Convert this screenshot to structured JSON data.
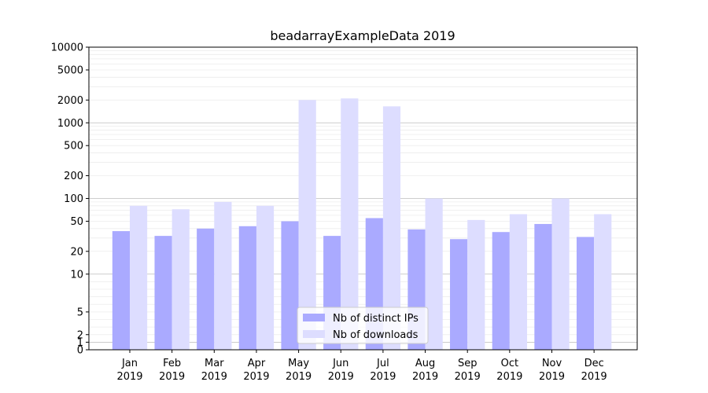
{
  "chart_data": {
    "type": "bar",
    "title": "beadarrayExampleData 2019",
    "xlabel": "",
    "ylabel": "",
    "categories": [
      [
        "Jan",
        "2019"
      ],
      [
        "Feb",
        "2019"
      ],
      [
        "Mar",
        "2019"
      ],
      [
        "Apr",
        "2019"
      ],
      [
        "May",
        "2019"
      ],
      [
        "Jun",
        "2019"
      ],
      [
        "Jul",
        "2019"
      ],
      [
        "Aug",
        "2019"
      ],
      [
        "Sep",
        "2019"
      ],
      [
        "Oct",
        "2019"
      ],
      [
        "Nov",
        "2019"
      ],
      [
        "Dec",
        "2019"
      ]
    ],
    "series": [
      {
        "name": "Nb of distinct IPs",
        "color": "#aaaaff",
        "values": [
          37,
          32,
          40,
          43,
          50,
          32,
          55,
          39,
          29,
          36,
          46,
          31
        ]
      },
      {
        "name": "Nb of downloads",
        "color": "#ddddff",
        "values": [
          80,
          72,
          90,
          80,
          2000,
          2100,
          1650,
          100,
          52,
          62,
          100,
          62
        ]
      }
    ],
    "y_scale": "symlog",
    "ylim": [
      0,
      10000
    ],
    "y_ticks": [
      0,
      1,
      2,
      5,
      10,
      20,
      50,
      100,
      200,
      500,
      1000,
      2000,
      5000,
      10000
    ],
    "legend_position": "lower center",
    "grid": "horizontal"
  }
}
